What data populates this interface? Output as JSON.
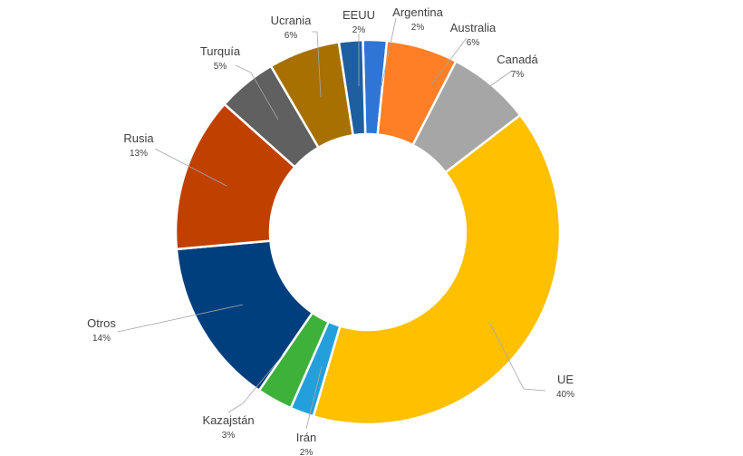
{
  "chart_data": {
    "type": "pie",
    "variant": "donut",
    "title": "",
    "legend": "none",
    "slices": [
      {
        "label": "Argentina",
        "value": 2,
        "value_label": "2%",
        "color": "#2E75D6"
      },
      {
        "label": "Australia",
        "value": 6,
        "value_label": "6%",
        "color": "#FF7F27"
      },
      {
        "label": "Canadá",
        "value": 7,
        "value_label": "7%",
        "color": "#A6A6A6"
      },
      {
        "label": "UE",
        "value": 40,
        "value_label": "40%",
        "color": "#FFC000"
      },
      {
        "label": "Irán",
        "value": 2,
        "value_label": "2%",
        "color": "#23A0DB"
      },
      {
        "label": "Kazajstán",
        "value": 3,
        "value_label": "3%",
        "color": "#3EB13A"
      },
      {
        "label": "Otros",
        "value": 14,
        "value_label": "14%",
        "color": "#003F7D"
      },
      {
        "label": "Rusia",
        "value": 13,
        "value_label": "13%",
        "color": "#C04000"
      },
      {
        "label": "Turquía",
        "value": 5,
        "value_label": "5%",
        "color": "#606060"
      },
      {
        "label": "Ucrania",
        "value": 6,
        "value_label": "6%",
        "color": "#A87000"
      },
      {
        "label": "EEUU",
        "value": 2,
        "value_label": "2%",
        "color": "#1E5FA0"
      }
    ]
  }
}
